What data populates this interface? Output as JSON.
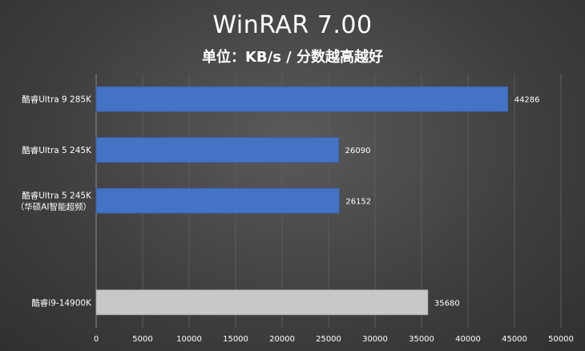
{
  "chart_data": {
    "type": "bar",
    "orientation": "horizontal",
    "title": "WinRAR  7.00",
    "subtitle": "单位：KB/s / 分数越高越好",
    "categories": [
      [
        "酷睿Ultra 9 285K"
      ],
      [
        "酷睿Ultra 5 245K"
      ],
      [
        "酷睿Ultra 5 245K",
        "（华硕AI智能超频）"
      ],
      [],
      [
        "酷睿i9-14900K"
      ]
    ],
    "values": [
      44286,
      26090,
      26152,
      null,
      35680
    ],
    "value_labels": [
      "44286",
      "26090",
      "26152",
      "",
      "35680"
    ],
    "bar_colors": [
      "#4472c4",
      "#4472c4",
      "#4472c4",
      "",
      "#c8c8c8"
    ],
    "xlim": [
      0,
      50000
    ],
    "xticks": [
      "0",
      "5000",
      "10000",
      "15000",
      "20000",
      "25000",
      "30000",
      "35000",
      "40000",
      "45000",
      "50000"
    ],
    "grid": true
  }
}
